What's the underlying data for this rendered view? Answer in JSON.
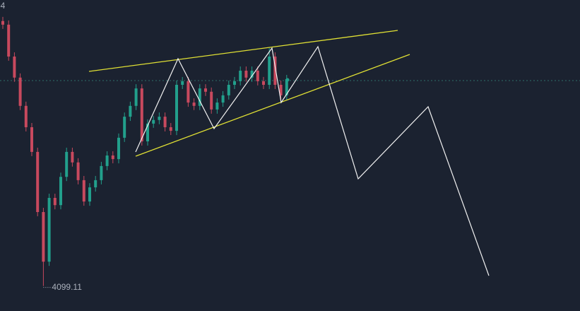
{
  "chart_data": {
    "type": "candlestick",
    "up_color": "#22a08c",
    "down_color": "#c8495e",
    "ylim": [
      4016,
      5050
    ],
    "open": [
      4980,
      4968,
      4862,
      4792,
      4698,
      4627,
      4545,
      4345,
      4180,
      4392,
      4368,
      4462,
      4545,
      4510,
      4451,
      4380,
      4427,
      4451,
      4498,
      4533,
      4521,
      4592,
      4662,
      4698,
      4756,
      4580,
      4639,
      4651,
      4662,
      4627,
      4615,
      4768,
      4780,
      4709,
      4698,
      4756,
      4745,
      4686,
      4709,
      4733,
      4768,
      4780,
      4815,
      4792,
      4815,
      4780,
      4768,
      4862,
      4768,
      4733
    ],
    "high": [
      4994,
      4982,
      4876,
      4806,
      4712,
      4641,
      4559,
      4359,
      4406,
      4406,
      4476,
      4559,
      4559,
      4524,
      4465,
      4441,
      4465,
      4512,
      4547,
      4547,
      4606,
      4676,
      4712,
      4770,
      4770,
      4653,
      4665,
      4676,
      4676,
      4641,
      4782,
      4794,
      4794,
      4723,
      4770,
      4770,
      4759,
      4723,
      4747,
      4782,
      4794,
      4829,
      4829,
      4829,
      4829,
      4794,
      4890,
      4876,
      4782,
      4801
    ],
    "low": [
      4954,
      4848,
      4778,
      4684,
      4613,
      4531,
      4331,
      4099.11,
      4166,
      4354,
      4354,
      4448,
      4496,
      4437,
      4366,
      4366,
      4413,
      4437,
      4484,
      4507,
      4507,
      4578,
      4648,
      4684,
      4566,
      4566,
      4625,
      4637,
      4613,
      4601,
      4601,
      4754,
      4695,
      4684,
      4684,
      4731,
      4672,
      4672,
      4695,
      4719,
      4754,
      4766,
      4778,
      4778,
      4766,
      4754,
      4754,
      4754,
      4719,
      4719
    ],
    "close": [
      4968,
      4862,
      4792,
      4698,
      4627,
      4545,
      4345,
      4180,
      4392,
      4368,
      4462,
      4545,
      4510,
      4451,
      4380,
      4427,
      4451,
      4498,
      4533,
      4521,
      4592,
      4662,
      4698,
      4756,
      4580,
      4639,
      4651,
      4662,
      4627,
      4615,
      4768,
      4780,
      4709,
      4698,
      4756,
      4745,
      4686,
      4709,
      4733,
      4768,
      4780,
      4815,
      4792,
      4815,
      4780,
      4768,
      4862,
      4768,
      4733,
      4787
    ]
  }
}
